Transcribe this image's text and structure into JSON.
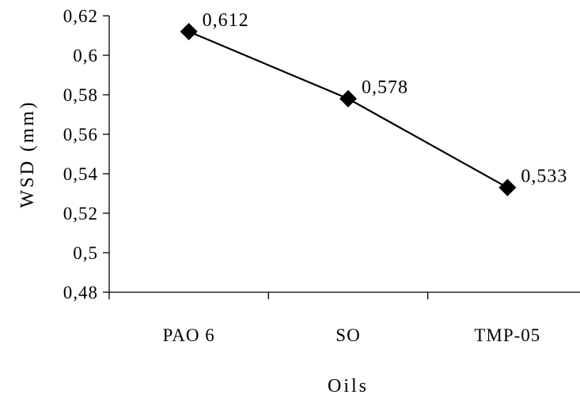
{
  "chart_data": {
    "type": "line",
    "title": "",
    "xlabel": "Oils",
    "ylabel": "WSD (mm)",
    "categories": [
      "PAO 6",
      "SO",
      "TMP-05"
    ],
    "series": [
      {
        "values": [
          0.612,
          0.578,
          0.533
        ]
      }
    ],
    "data_labels": [
      "0,612",
      "0,578",
      "0,533"
    ],
    "ylim": [
      0.48,
      0.62
    ],
    "yticks": [
      "0,48",
      "0,5",
      "0,52",
      "0,54",
      "0,56",
      "0,58",
      "0,6",
      "0,62"
    ],
    "grid": false,
    "legend": "none",
    "marker": "diamond",
    "line_color": "#000000"
  }
}
